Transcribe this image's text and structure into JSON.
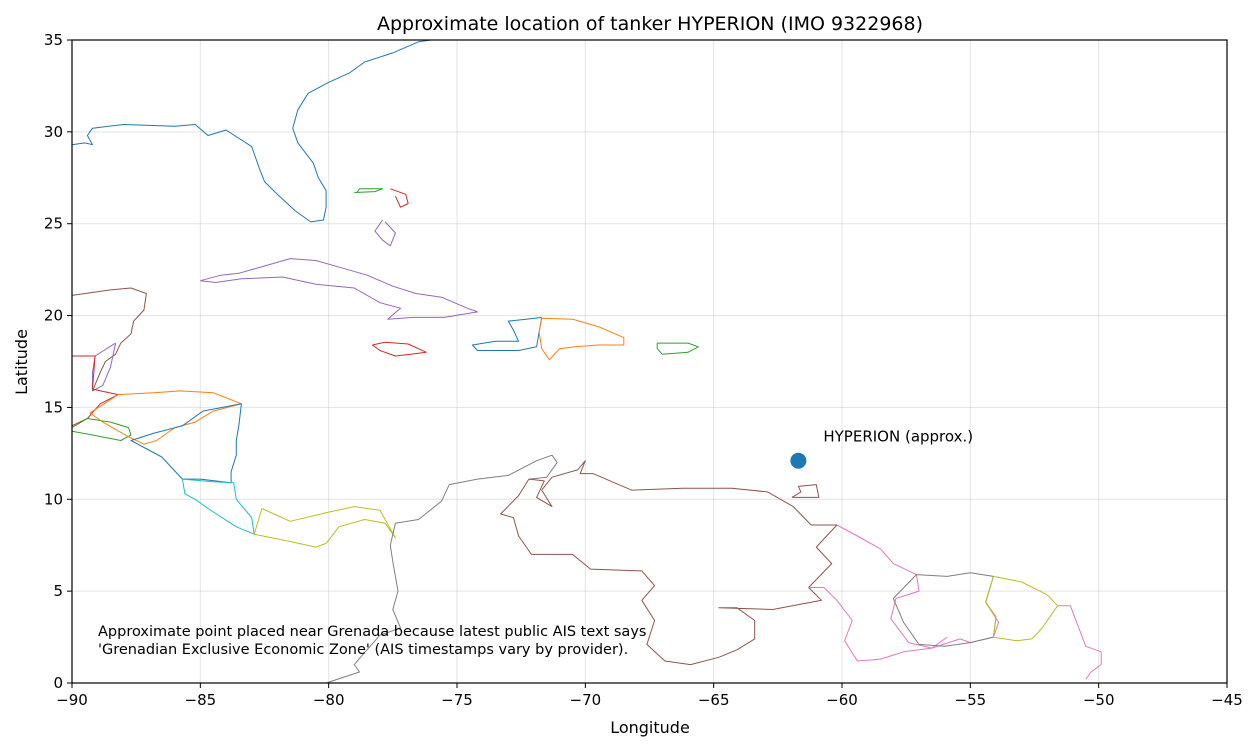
{
  "chart_data": {
    "type": "scatter",
    "title": "Approximate location of tanker HYPERION (IMO 9322968)",
    "xlabel": "Longitude",
    "ylabel": "Latitude",
    "xlim": [
      -90,
      -45
    ],
    "ylim": [
      0,
      35
    ],
    "xticks": [
      -90,
      -85,
      -80,
      -75,
      -70,
      -65,
      -60,
      -55,
      -50,
      -45
    ],
    "yticks": [
      0,
      5,
      10,
      15,
      20,
      25,
      30,
      35
    ],
    "xtick_labels": [
      "−90",
      "−85",
      "−80",
      "−75",
      "−70",
      "−65",
      "−60",
      "−55",
      "−50",
      "−45"
    ],
    "ytick_labels": [
      "0",
      "5",
      "10",
      "15",
      "20",
      "25",
      "30",
      "35"
    ],
    "grid": true,
    "point": {
      "label": "HYPERION (approx.)",
      "lon": -61.7,
      "lat": 12.1,
      "color": "#1f77b4"
    },
    "note_lines": [
      "Approximate point placed near Grenada because latest public AIS text says",
      "'Grenadian Exclusive Economic Zone' (AIS timestamps vary by provider)."
    ],
    "outline_colors": {
      "blue": "#1f77b4",
      "orange": "#ff7f0e",
      "green": "#2ca02c",
      "red": "#d62728",
      "purple": "#9467bd",
      "brown": "#8c564b",
      "pink": "#e377c2",
      "gray": "#7f7f7f",
      "olive": "#bcbd22",
      "cyan": "#17becf"
    }
  }
}
